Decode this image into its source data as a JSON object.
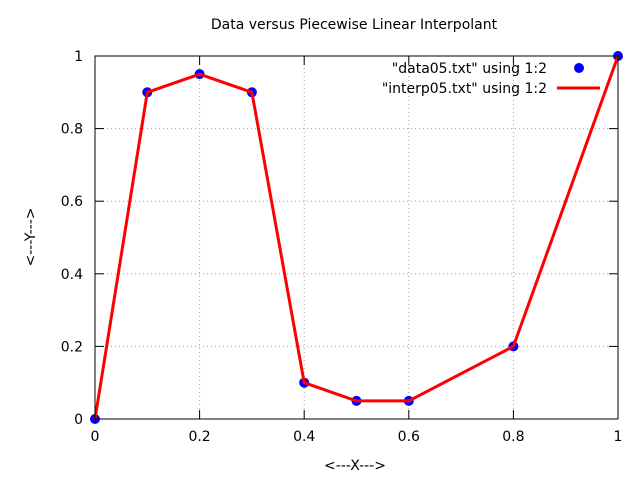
{
  "chart_data": {
    "type": "line",
    "title": "Data versus Piecewise Linear Interpolant",
    "xlabel": "<---X--->",
    "ylabel": "<---Y--->",
    "xlim": [
      0,
      1
    ],
    "ylim": [
      0,
      1
    ],
    "x_ticks": [
      "0",
      "0.2",
      "0.4",
      "0.6",
      "0.8",
      "1"
    ],
    "y_ticks": [
      "0",
      "0.2",
      "0.4",
      "0.6",
      "0.8",
      "1"
    ],
    "grid": true,
    "legend_position": "top-right",
    "series": [
      {
        "name": "\"data05.txt\" using 1:2",
        "style": "points",
        "color": "#0000ff",
        "x": [
          0,
          0.1,
          0.2,
          0.3,
          0.4,
          0.5,
          0.6,
          0.8,
          1.0
        ],
        "y": [
          0,
          0.9,
          0.95,
          0.9,
          0.1,
          0.05,
          0.05,
          0.2,
          1.0
        ]
      },
      {
        "name": "\"interp05.txt\" using 1:2",
        "style": "line",
        "color": "#ff0000",
        "x": [
          0,
          0.1,
          0.2,
          0.3,
          0.4,
          0.5,
          0.6,
          0.8,
          1.0
        ],
        "y": [
          0,
          0.9,
          0.95,
          0.9,
          0.1,
          0.05,
          0.05,
          0.2,
          1.0
        ]
      }
    ]
  }
}
